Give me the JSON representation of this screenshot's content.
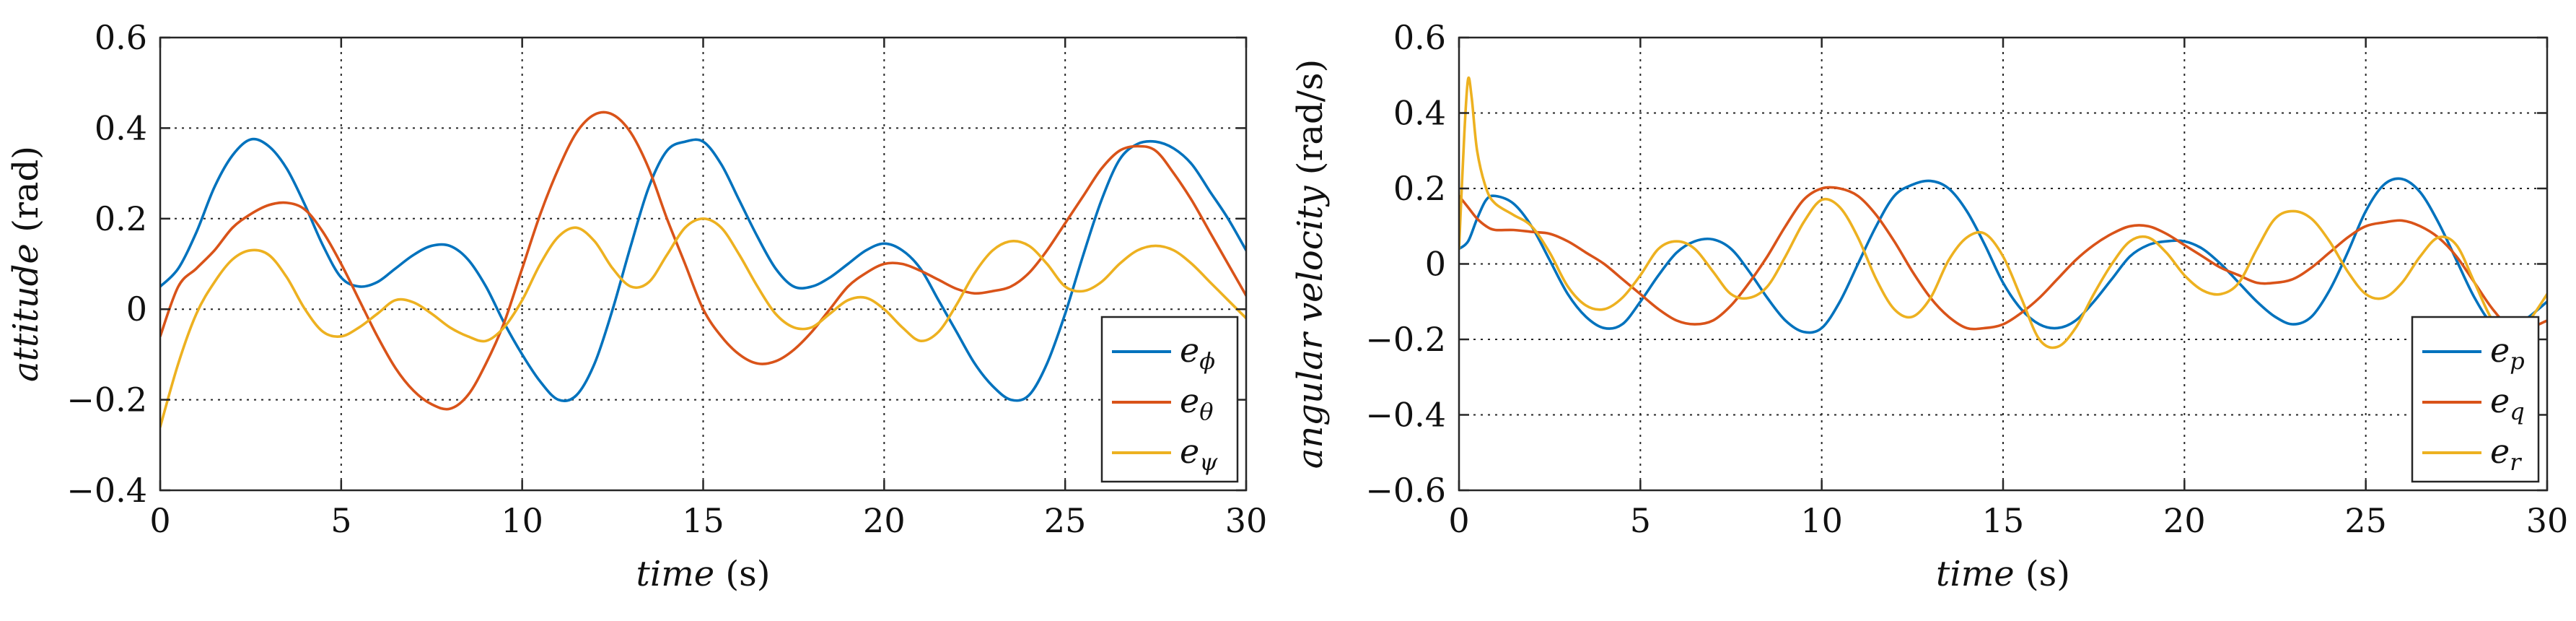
{
  "chart_data": [
    {
      "type": "line",
      "title": "",
      "xlabel": {
        "italic": "time",
        "plain": " (s)"
      },
      "ylabel": {
        "italic": "attitude",
        "plain": " (rad)"
      },
      "xlim": [
        0,
        30
      ],
      "ylim": [
        -0.4,
        0.6
      ],
      "xticks": [
        0,
        5,
        10,
        15,
        20,
        25,
        30
      ],
      "yticks": [
        -0.4,
        -0.2,
        0,
        0.2,
        0.4,
        0.6
      ],
      "xtick_labels": [
        "0",
        "5",
        "10",
        "15",
        "20",
        "25",
        "30"
      ],
      "ytick_labels": [
        "−0.4",
        "−0.2",
        "0",
        "0.2",
        "0.4",
        "0.6"
      ],
      "grid": true,
      "legend_position": "bottom-right",
      "series": [
        {
          "name": "e_phi",
          "label_base": "e",
          "label_sub": "ϕ",
          "color": "#0072BD",
          "x": [
            0,
            0.5,
            1,
            1.5,
            2,
            2.5,
            3,
            3.5,
            4,
            4.5,
            5,
            5.5,
            6,
            6.5,
            7,
            7.5,
            8,
            8.5,
            9,
            9.5,
            10,
            10.5,
            11,
            11.5,
            12,
            12.5,
            13,
            13.5,
            14,
            14.5,
            15,
            15.5,
            16,
            16.5,
            17,
            17.5,
            18,
            18.5,
            19,
            19.5,
            20,
            20.5,
            21,
            21.5,
            22,
            22.5,
            23,
            23.5,
            24,
            24.5,
            25,
            25.5,
            26,
            26.5,
            27,
            27.5,
            28,
            28.5,
            29,
            29.5,
            30
          ],
          "y": [
            0.05,
            0.09,
            0.17,
            0.27,
            0.34,
            0.375,
            0.36,
            0.31,
            0.23,
            0.14,
            0.07,
            0.05,
            0.06,
            0.09,
            0.12,
            0.14,
            0.14,
            0.11,
            0.05,
            -0.03,
            -0.1,
            -0.16,
            -0.2,
            -0.19,
            -0.12,
            0.0,
            0.14,
            0.27,
            0.35,
            0.37,
            0.37,
            0.32,
            0.24,
            0.16,
            0.09,
            0.05,
            0.05,
            0.07,
            0.1,
            0.13,
            0.145,
            0.13,
            0.09,
            0.02,
            -0.05,
            -0.12,
            -0.17,
            -0.2,
            -0.19,
            -0.12,
            -0.01,
            0.12,
            0.24,
            0.33,
            0.365,
            0.37,
            0.355,
            0.32,
            0.26,
            0.2,
            0.13
          ]
        },
        {
          "name": "e_theta",
          "label_base": "e",
          "label_sub": "θ",
          "color": "#D95319",
          "x": [
            0,
            0.5,
            1,
            1.5,
            2,
            2.5,
            3,
            3.5,
            4,
            4.5,
            5,
            5.5,
            6,
            6.5,
            7,
            7.5,
            8,
            8.5,
            9,
            9.5,
            10,
            10.5,
            11,
            11.5,
            12,
            12.5,
            13,
            13.5,
            14,
            14.5,
            15,
            15.5,
            16,
            16.5,
            17,
            17.5,
            18,
            18.5,
            19,
            19.5,
            20,
            20.5,
            21,
            21.5,
            22,
            22.5,
            23,
            23.5,
            24,
            24.5,
            25,
            25.5,
            26,
            26.5,
            27,
            27.5,
            28,
            28.5,
            29,
            29.5,
            30
          ],
          "y": [
            -0.06,
            0.05,
            0.09,
            0.13,
            0.18,
            0.21,
            0.23,
            0.235,
            0.22,
            0.17,
            0.1,
            0.02,
            -0.06,
            -0.13,
            -0.18,
            -0.21,
            -0.22,
            -0.19,
            -0.12,
            -0.03,
            0.09,
            0.21,
            0.31,
            0.39,
            0.43,
            0.43,
            0.39,
            0.31,
            0.2,
            0.1,
            0.0,
            -0.06,
            -0.1,
            -0.12,
            -0.115,
            -0.09,
            -0.05,
            0.0,
            0.05,
            0.08,
            0.1,
            0.1,
            0.085,
            0.065,
            0.045,
            0.035,
            0.04,
            0.05,
            0.08,
            0.13,
            0.19,
            0.25,
            0.31,
            0.35,
            0.36,
            0.35,
            0.3,
            0.24,
            0.17,
            0.1,
            0.03
          ]
        },
        {
          "name": "e_psi",
          "label_base": "e",
          "label_sub": "ψ",
          "color": "#EDB120",
          "x": [
            0,
            0.5,
            1,
            1.5,
            2,
            2.5,
            3,
            3.5,
            4,
            4.5,
            5,
            5.5,
            6,
            6.5,
            7,
            7.5,
            8,
            8.5,
            9,
            9.5,
            10,
            10.5,
            11,
            11.5,
            12,
            12.5,
            13,
            13.5,
            14,
            14.5,
            15,
            15.5,
            16,
            16.5,
            17,
            17.5,
            18,
            18.5,
            19,
            19.5,
            20,
            20.5,
            21,
            21.5,
            22,
            22.5,
            23,
            23.5,
            24,
            24.5,
            25,
            25.5,
            26,
            26.5,
            27,
            27.5,
            28,
            28.5,
            29,
            29.5,
            30
          ],
          "y": [
            -0.26,
            -0.12,
            -0.01,
            0.06,
            0.11,
            0.13,
            0.12,
            0.07,
            0.0,
            -0.05,
            -0.06,
            -0.04,
            -0.01,
            0.02,
            0.015,
            -0.01,
            -0.04,
            -0.06,
            -0.07,
            -0.04,
            0.02,
            0.1,
            0.16,
            0.18,
            0.15,
            0.09,
            0.05,
            0.06,
            0.12,
            0.18,
            0.2,
            0.18,
            0.12,
            0.05,
            -0.01,
            -0.04,
            -0.04,
            -0.01,
            0.02,
            0.025,
            0.0,
            -0.04,
            -0.07,
            -0.05,
            0.01,
            0.08,
            0.13,
            0.15,
            0.14,
            0.1,
            0.05,
            0.04,
            0.06,
            0.1,
            0.13,
            0.14,
            0.13,
            0.1,
            0.06,
            0.02,
            -0.02
          ]
        }
      ]
    },
    {
      "type": "line",
      "title": "",
      "xlabel": {
        "italic": "time",
        "plain": " (s)"
      },
      "ylabel": {
        "italic": "angular velocity",
        "plain": " (rad/s)"
      },
      "xlim": [
        0,
        30
      ],
      "ylim": [
        -0.6,
        0.6
      ],
      "xticks": [
        0,
        5,
        10,
        15,
        20,
        25,
        30
      ],
      "yticks": [
        -0.6,
        -0.4,
        -0.2,
        0,
        0.2,
        0.4,
        0.6
      ],
      "xtick_labels": [
        "0",
        "5",
        "10",
        "15",
        "20",
        "25",
        "30"
      ],
      "ytick_labels": [
        "−0.6",
        "−0.4",
        "−0.2",
        "0",
        "0.2",
        "0.4",
        "0.6"
      ],
      "grid": true,
      "legend_position": "bottom-right",
      "series": [
        {
          "name": "e_p",
          "label_base": "e",
          "label_sub": "p",
          "color": "#0072BD",
          "x": [
            0,
            0.25,
            0.5,
            0.75,
            1,
            1.5,
            2,
            2.5,
            3,
            3.5,
            4,
            4.5,
            5,
            5.5,
            6,
            6.5,
            7,
            7.5,
            8,
            8.5,
            9,
            9.5,
            10,
            10.5,
            11,
            11.5,
            12,
            12.5,
            13,
            13.5,
            14,
            14.5,
            15,
            15.5,
            16,
            16.5,
            17,
            17.5,
            18,
            18.5,
            19,
            19.5,
            20,
            20.5,
            21,
            21.5,
            22,
            22.5,
            23,
            23.5,
            24,
            24.5,
            25,
            25.5,
            26,
            26.5,
            27,
            27.5,
            28,
            28.5,
            29,
            29.5,
            30
          ],
          "y": [
            0.04,
            0.06,
            0.12,
            0.17,
            0.18,
            0.16,
            0.1,
            0.01,
            -0.08,
            -0.14,
            -0.17,
            -0.16,
            -0.1,
            -0.03,
            0.03,
            0.06,
            0.065,
            0.04,
            -0.02,
            -0.09,
            -0.15,
            -0.18,
            -0.17,
            -0.1,
            0.0,
            0.1,
            0.18,
            0.21,
            0.22,
            0.2,
            0.14,
            0.05,
            -0.05,
            -0.12,
            -0.16,
            -0.17,
            -0.15,
            -0.1,
            -0.04,
            0.02,
            0.05,
            0.06,
            0.06,
            0.04,
            0.0,
            -0.05,
            -0.1,
            -0.14,
            -0.16,
            -0.14,
            -0.07,
            0.03,
            0.14,
            0.21,
            0.225,
            0.19,
            0.11,
            0.01,
            -0.09,
            -0.16,
            -0.17,
            -0.14,
            -0.1
          ]
        },
        {
          "name": "e_q",
          "label_base": "e",
          "label_sub": "q",
          "color": "#D95319",
          "x": [
            0,
            0.25,
            0.5,
            0.75,
            1,
            1.5,
            2,
            2.5,
            3,
            3.5,
            4,
            4.5,
            5,
            5.5,
            6,
            6.5,
            7,
            7.5,
            8,
            8.5,
            9,
            9.5,
            10,
            10.5,
            11,
            11.5,
            12,
            12.5,
            13,
            13.5,
            14,
            14.5,
            15,
            15.5,
            16,
            16.5,
            17,
            17.5,
            18,
            18.5,
            19,
            19.5,
            20,
            20.5,
            21,
            21.5,
            22,
            22.5,
            23,
            23.5,
            24,
            24.5,
            25,
            25.5,
            26,
            26.5,
            27,
            27.5,
            28,
            28.5,
            29,
            29.5,
            30
          ],
          "y": [
            0.18,
            0.15,
            0.12,
            0.1,
            0.09,
            0.09,
            0.085,
            0.08,
            0.06,
            0.03,
            0.0,
            -0.04,
            -0.08,
            -0.12,
            -0.15,
            -0.16,
            -0.15,
            -0.11,
            -0.05,
            0.02,
            0.1,
            0.17,
            0.2,
            0.2,
            0.18,
            0.13,
            0.06,
            -0.02,
            -0.09,
            -0.14,
            -0.17,
            -0.17,
            -0.16,
            -0.13,
            -0.09,
            -0.04,
            0.01,
            0.05,
            0.08,
            0.1,
            0.1,
            0.08,
            0.05,
            0.02,
            -0.01,
            -0.03,
            -0.05,
            -0.05,
            -0.04,
            -0.01,
            0.03,
            0.07,
            0.1,
            0.11,
            0.115,
            0.1,
            0.07,
            0.02,
            -0.05,
            -0.12,
            -0.17,
            -0.17,
            -0.15
          ]
        },
        {
          "name": "e_r",
          "label_base": "e",
          "label_sub": "r",
          "color": "#EDB120",
          "x": [
            0,
            0.15,
            0.25,
            0.35,
            0.5,
            0.75,
            1,
            1.5,
            2,
            2.5,
            3,
            3.5,
            4,
            4.5,
            5,
            5.5,
            6,
            6.5,
            7,
            7.5,
            8,
            8.5,
            9,
            9.5,
            10,
            10.5,
            11,
            11.5,
            12,
            12.5,
            13,
            13.5,
            14,
            14.5,
            15,
            15.5,
            16,
            16.5,
            17,
            17.5,
            18,
            18.5,
            19,
            19.5,
            20,
            20.5,
            21,
            21.5,
            22,
            22.5,
            23,
            23.5,
            24,
            24.5,
            25,
            25.5,
            26,
            26.5,
            27,
            27.5,
            28,
            28.5,
            29,
            29.5,
            30
          ],
          "y": [
            0.04,
            0.35,
            0.49,
            0.44,
            0.3,
            0.2,
            0.16,
            0.13,
            0.1,
            0.03,
            -0.06,
            -0.11,
            -0.12,
            -0.09,
            -0.03,
            0.04,
            0.06,
            0.04,
            -0.02,
            -0.08,
            -0.09,
            -0.06,
            0.02,
            0.11,
            0.17,
            0.15,
            0.07,
            -0.04,
            -0.12,
            -0.14,
            -0.09,
            0.01,
            0.07,
            0.08,
            0.02,
            -0.09,
            -0.2,
            -0.22,
            -0.17,
            -0.08,
            0.0,
            0.06,
            0.07,
            0.03,
            -0.03,
            -0.07,
            -0.08,
            -0.05,
            0.04,
            0.12,
            0.14,
            0.12,
            0.06,
            -0.02,
            -0.08,
            -0.09,
            -0.05,
            0.02,
            0.07,
            0.05,
            -0.05,
            -0.15,
            -0.19,
            -0.15,
            -0.08
          ]
        }
      ]
    }
  ]
}
